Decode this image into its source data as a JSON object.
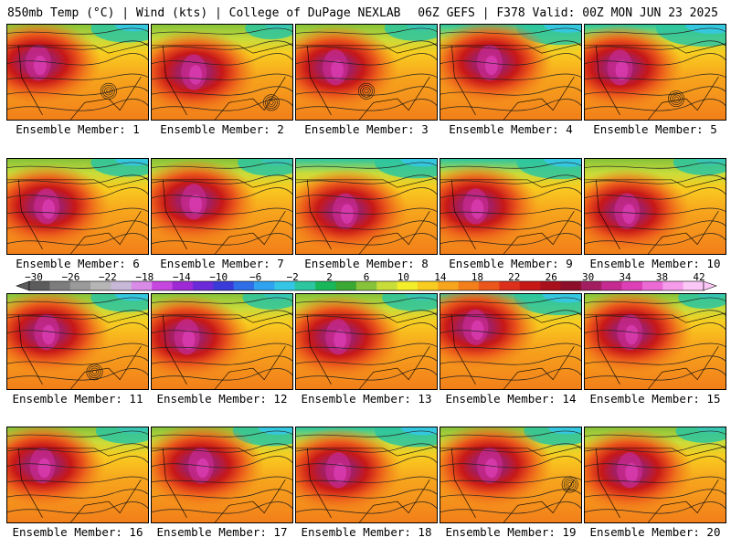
{
  "header": {
    "left": "850mb Temp (°C) | Wind (kts) | College of DuPage NEXLAB",
    "right": "06Z GEFS | F378 Valid: 00Z MON JUN 23 2025"
  },
  "members": [
    {
      "label": "Ensemble Member: 1",
      "scheme": "hot",
      "northCool": 0.55,
      "coreX": 0.22,
      "coreY": 0.4,
      "low": [
        0.72,
        0.7
      ]
    },
    {
      "label": "Ensemble Member: 2",
      "scheme": "hot",
      "northCool": 0.35,
      "coreX": 0.3,
      "coreY": 0.5,
      "low": [
        0.85,
        0.82
      ]
    },
    {
      "label": "Ensemble Member: 3",
      "scheme": "hot",
      "northCool": 0.45,
      "coreX": 0.28,
      "coreY": 0.45,
      "low": [
        0.5,
        0.7
      ]
    },
    {
      "label": "Ensemble Member: 4",
      "scheme": "hot",
      "northCool": 0.7,
      "coreX": 0.35,
      "coreY": 0.4,
      "low": null
    },
    {
      "label": "Ensemble Member: 5",
      "scheme": "hot",
      "northCool": 0.8,
      "coreX": 0.25,
      "coreY": 0.45,
      "low": [
        0.65,
        0.78
      ]
    },
    {
      "label": "Ensemble Member: 6",
      "scheme": "hot",
      "northCool": 0.55,
      "coreX": 0.28,
      "coreY": 0.5,
      "low": null
    },
    {
      "label": "Ensemble Member: 7",
      "scheme": "hot",
      "northCool": 0.5,
      "coreX": 0.3,
      "coreY": 0.45,
      "low": null
    },
    {
      "label": "Ensemble Member: 8",
      "scheme": "hot",
      "northCool": 0.65,
      "coreX": 0.35,
      "coreY": 0.55,
      "low": null
    },
    {
      "label": "Ensemble Member: 9",
      "scheme": "hot",
      "northCool": 0.7,
      "coreX": 0.25,
      "coreY": 0.5,
      "low": null
    },
    {
      "label": "Ensemble Member: 10",
      "scheme": "hot",
      "northCool": 0.45,
      "coreX": 0.3,
      "coreY": 0.55,
      "low": null
    },
    {
      "label": "Ensemble Member: 11",
      "scheme": "hot",
      "northCool": 0.55,
      "coreX": 0.28,
      "coreY": 0.4,
      "low": [
        0.62,
        0.82
      ]
    },
    {
      "label": "Ensemble Member: 12",
      "scheme": "hot",
      "northCool": 0.4,
      "coreX": 0.25,
      "coreY": 0.45,
      "low": null
    },
    {
      "label": "Ensemble Member: 13",
      "scheme": "hot",
      "northCool": 0.5,
      "coreX": 0.3,
      "coreY": 0.45,
      "low": null
    },
    {
      "label": "Ensemble Member: 14",
      "scheme": "hot",
      "northCool": 0.75,
      "coreX": 0.25,
      "coreY": 0.35,
      "low": null
    },
    {
      "label": "Ensemble Member: 15",
      "scheme": "hot",
      "northCool": 0.35,
      "coreX": 0.32,
      "coreY": 0.4,
      "low": null
    },
    {
      "label": "Ensemble Member: 16",
      "scheme": "hot",
      "northCool": 0.45,
      "coreX": 0.25,
      "coreY": 0.4,
      "low": null
    },
    {
      "label": "Ensemble Member: 17",
      "scheme": "hot",
      "northCool": 0.6,
      "coreX": 0.35,
      "coreY": 0.4,
      "low": null
    },
    {
      "label": "Ensemble Member: 18",
      "scheme": "hot",
      "northCool": 0.65,
      "coreX": 0.3,
      "coreY": 0.45,
      "low": null
    },
    {
      "label": "Ensemble Member: 19",
      "scheme": "hot",
      "northCool": 0.55,
      "coreX": 0.35,
      "coreY": 0.4,
      "low": [
        0.92,
        0.6
      ]
    },
    {
      "label": "Ensemble Member: 20",
      "scheme": "hot",
      "northCool": 0.4,
      "coreX": 0.32,
      "coreY": 0.45,
      "low": null
    }
  ],
  "colorbar": {
    "labels": [
      "−30",
      "−26",
      "−22",
      "−18",
      "−14",
      "−10",
      "−6",
      "−2",
      "2",
      "6",
      "10",
      "14",
      "18",
      "22",
      "26",
      "30",
      "34",
      "38",
      "42"
    ],
    "colors": [
      "#5c5c5c",
      "#7d7d7d",
      "#9a9a9a",
      "#b5b5b5",
      "#c8b8d8",
      "#d98be8",
      "#c646e0",
      "#9e2ad6",
      "#6c2bd9",
      "#3a3ad8",
      "#2f6ee6",
      "#2fa3f0",
      "#35c6e6",
      "#2cc6a0",
      "#18b85a",
      "#3aa833",
      "#86c23a",
      "#c8dc3a",
      "#f2ee2a",
      "#f8cc20",
      "#f7a51d",
      "#f27f1a",
      "#ea561b",
      "#dc2f1c",
      "#c71818",
      "#a8101b",
      "#8c0e2a",
      "#a31e60",
      "#c42a8f",
      "#dd3fb6",
      "#ec6ad4",
      "#f59bea",
      "#fbc7f6"
    ]
  }
}
